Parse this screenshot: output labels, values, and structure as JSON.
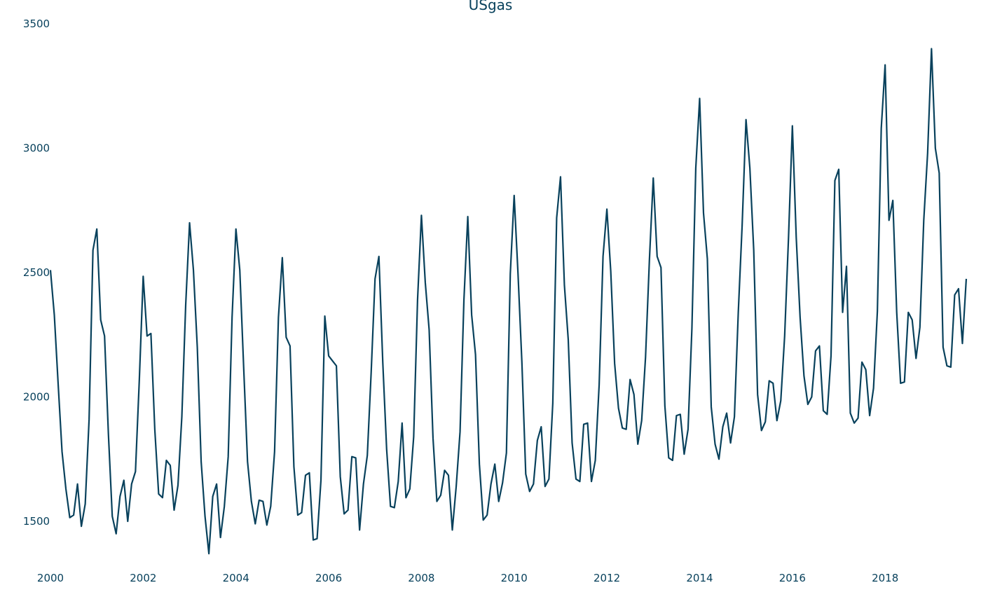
{
  "colors": {
    "line": "#08415C",
    "text": "#08415C",
    "background": "#ffffff"
  },
  "chart_data": {
    "type": "line",
    "title": "USgas",
    "xlabel": "",
    "ylabel": "",
    "grid": false,
    "xlim": [
      "2000-01",
      "2019-12"
    ],
    "ylim": [
      1300,
      3500
    ],
    "x_ticks": [
      "2000",
      "2002",
      "2004",
      "2006",
      "2008",
      "2010",
      "2012",
      "2014",
      "2016",
      "2018"
    ],
    "y_ticks": [
      "1500",
      "2000",
      "2500",
      "3000",
      "3500"
    ],
    "series": [
      {
        "x_start": "2000-01",
        "frequency": "monthly",
        "values": [
          2510,
          2330,
          2050,
          1780,
          1630,
          1515,
          1525,
          1650,
          1480,
          1570,
          1910,
          2590,
          2675,
          2310,
          2245,
          1850,
          1520,
          1450,
          1600,
          1665,
          1500,
          1650,
          1700,
          2070,
          2485,
          2245,
          2255,
          1870,
          1610,
          1595,
          1745,
          1725,
          1545,
          1645,
          1920,
          2370,
          2700,
          2510,
          2200,
          1740,
          1520,
          1370,
          1600,
          1650,
          1435,
          1560,
          1760,
          2320,
          2675,
          2510,
          2120,
          1740,
          1580,
          1490,
          1585,
          1580,
          1485,
          1560,
          1780,
          2320,
          2560,
          2240,
          2205,
          1720,
          1525,
          1535,
          1685,
          1695,
          1425,
          1430,
          1665,
          2325,
          2165,
          2145,
          2125,
          1680,
          1530,
          1545,
          1760,
          1755,
          1465,
          1650,
          1765,
          2100,
          2475,
          2565,
          2140,
          1790,
          1560,
          1555,
          1660,
          1895,
          1595,
          1630,
          1840,
          2390,
          2730,
          2460,
          2270,
          1835,
          1580,
          1605,
          1705,
          1685,
          1465,
          1640,
          1860,
          2390,
          2725,
          2330,
          2170,
          1730,
          1505,
          1525,
          1650,
          1730,
          1580,
          1655,
          1775,
          2495,
          2810,
          2495,
          2140,
          1690,
          1620,
          1650,
          1825,
          1880,
          1640,
          1670,
          1975,
          2720,
          2885,
          2450,
          2230,
          1815,
          1670,
          1660,
          1890,
          1895,
          1660,
          1745,
          2050,
          2565,
          2755,
          2505,
          2135,
          1955,
          1875,
          1870,
          2070,
          2010,
          1810,
          1905,
          2160,
          2550,
          2880,
          2565,
          2520,
          1965,
          1755,
          1745,
          1925,
          1930,
          1770,
          1870,
          2275,
          2920,
          3200,
          2740,
          2555,
          1960,
          1810,
          1750,
          1880,
          1935,
          1815,
          1920,
          2340,
          2690,
          3115,
          2920,
          2590,
          2010,
          1865,
          1900,
          2065,
          2055,
          1905,
          1985,
          2245,
          2640,
          3090,
          2640,
          2320,
          2085,
          1970,
          2000,
          2185,
          2205,
          1945,
          1930,
          2165,
          2870,
          2915,
          2340,
          2525,
          1935,
          1895,
          1915,
          2140,
          2110,
          1925,
          2035,
          2345,
          3080,
          3335,
          2710,
          2790,
          2340,
          2055,
          2060,
          2340,
          2310,
          2155,
          2280,
          2710,
          2980,
          3400,
          3000,
          2900,
          2200,
          2125,
          2120,
          2410,
          2435,
          2215,
          2475
        ]
      }
    ]
  }
}
